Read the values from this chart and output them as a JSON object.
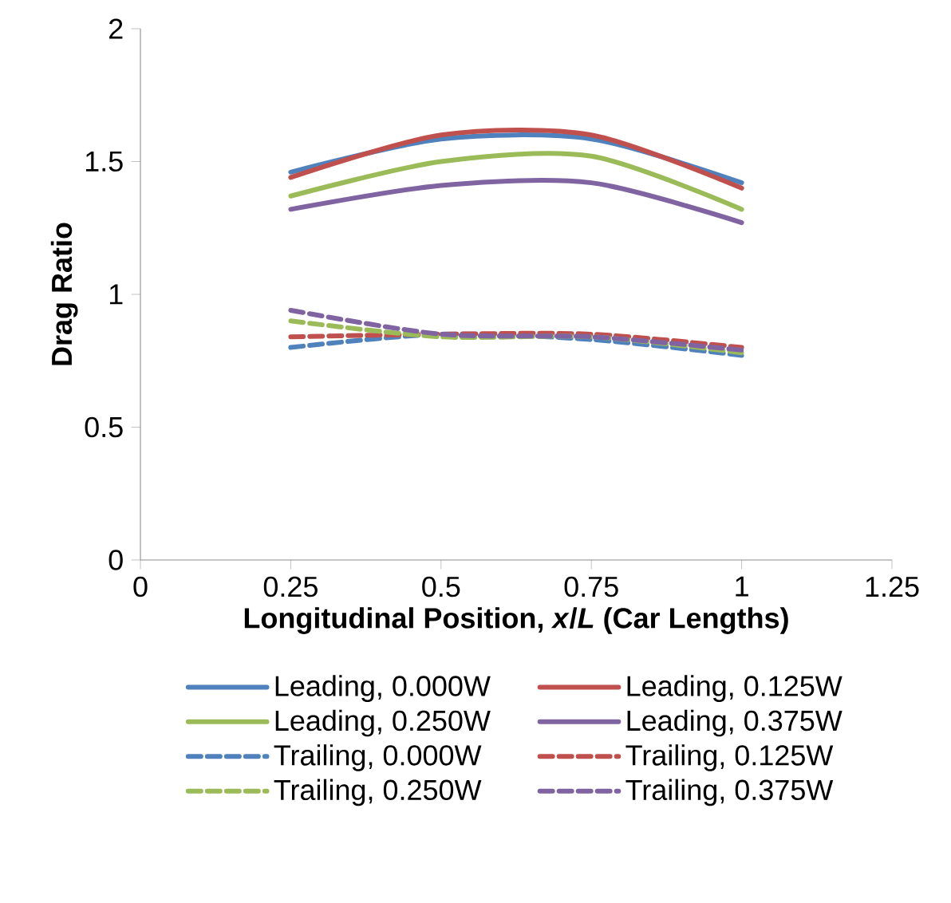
{
  "chart_data": {
    "type": "line",
    "xlabel": "Longitudinal Position, *x*/*L* (Car Lengths)",
    "ylabel": "Drag Ratio",
    "x": [
      0.25,
      0.5,
      0.75,
      1
    ],
    "series": [
      {
        "name": "Leading, 0.000W",
        "color": "#4f81bd",
        "line_style": "solid",
        "values": [
          1.46,
          1.585,
          1.585,
          1.42
        ]
      },
      {
        "name": "Leading, 0.125W",
        "color": "#c0504d",
        "line_style": "solid",
        "values": [
          1.44,
          1.6,
          1.6,
          1.4
        ]
      },
      {
        "name": "Leading, 0.250W",
        "color": "#9bbb59",
        "line_style": "solid",
        "values": [
          1.37,
          1.5,
          1.52,
          1.32
        ]
      },
      {
        "name": "Leading, 0.375W",
        "color": "#8064a2",
        "line_style": "solid",
        "values": [
          1.32,
          1.41,
          1.42,
          1.27
        ]
      },
      {
        "name": "Trailing, 0.000W",
        "color": "#4f81bd",
        "line_style": "dashed",
        "values": [
          0.8,
          0.85,
          0.83,
          0.77
        ]
      },
      {
        "name": "Trailing, 0.125W",
        "color": "#c0504d",
        "line_style": "dashed",
        "values": [
          0.84,
          0.85,
          0.85,
          0.8
        ]
      },
      {
        "name": "Trailing, 0.250W",
        "color": "#9bbb59",
        "line_style": "dashed",
        "values": [
          0.9,
          0.84,
          0.84,
          0.78
        ]
      },
      {
        "name": "Trailing, 0.375W",
        "color": "#8064a2",
        "line_style": "dashed",
        "values": [
          0.94,
          0.85,
          0.84,
          0.79
        ]
      }
    ],
    "xlim": [
      0,
      1.25
    ],
    "xticks": [
      0,
      0.25,
      0.5,
      0.75,
      1,
      1.25
    ],
    "ylim": [
      0,
      2
    ],
    "yticks": [
      0,
      0.5,
      1,
      1.5,
      2
    ],
    "grid": false,
    "legend": "bottom",
    "marker": "none"
  }
}
